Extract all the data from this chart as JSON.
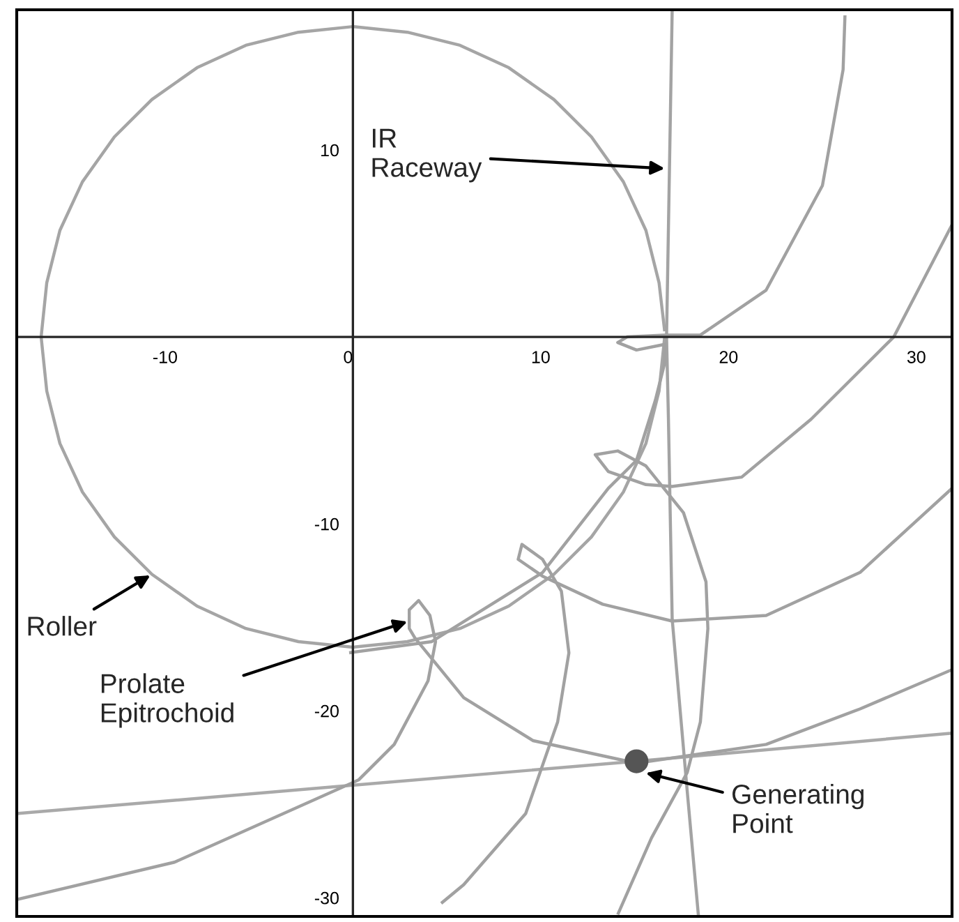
{
  "chart_data": {
    "type": "line",
    "xlim": [
      -17.9,
      31.9
    ],
    "ylim": [
      -31.0,
      17.5
    ],
    "xticks": [
      -10,
      0,
      10,
      20,
      30
    ],
    "yticks": [
      -30,
      -20,
      -10,
      10
    ],
    "series": [
      {
        "type": "line",
        "color": "#a5a5a5",
        "x": [
          16.6,
          16.3,
          15.6,
          14.4,
          12.7,
          10.7,
          8.3,
          5.7,
          2.9,
          0,
          -2.9,
          -5.7,
          -8.3,
          -10.7,
          -12.7,
          -14.4,
          -15.6,
          -16.3,
          -16.6,
          -16.3,
          -15.6,
          -14.4,
          -12.7,
          -10.7,
          -8.3,
          -5.7,
          -2.9,
          0,
          2.9,
          5.7,
          8.3,
          10.7,
          12.7,
          14.4,
          15.6,
          16.3,
          16.6
        ],
        "values": [
          0.3,
          2.9,
          5.7,
          8.3,
          10.7,
          12.7,
          14.4,
          15.6,
          16.3,
          16.6,
          16.3,
          15.6,
          14.4,
          12.7,
          10.7,
          8.3,
          5.7,
          2.9,
          0,
          -2.9,
          -5.7,
          -8.3,
          -10.7,
          -12.7,
          -14.4,
          -15.6,
          -16.3,
          -16.6,
          -16.3,
          -15.6,
          -14.4,
          -12.7,
          -10.7,
          -8.3,
          -5.7,
          -2.9,
          0
        ]
      },
      {
        "color": "#a3a3a3",
        "x": [
          17.0,
          16.7,
          16.8,
          17.0,
          17.8,
          18.4
        ],
        "values": [
          17.5,
          0,
          -4.4,
          -15.1,
          -24.3,
          -31.0
        ]
      },
      {
        "color": "#a9a9a9",
        "x": [
          -17.9,
          15.1,
          31.9
        ],
        "values": [
          -25.5,
          -22.7,
          -21.2
        ]
      },
      {
        "color": "#a1a1a1",
        "x": [
          -17.9,
          -9.5,
          0.3,
          2.2,
          4.0,
          4.4,
          4.1,
          3.5,
          3.0,
          3.0,
          3.3,
          5.9,
          9.6,
          15.1,
          22.0,
          27.0,
          31.9,
          null,
          4.7,
          5.9,
          9.2,
          10.9,
          11.5,
          11.1,
          10.1,
          9.0,
          8.8,
          10.1,
          13.3,
          17.0,
          22.0,
          27.0,
          31.9,
          null,
          14.1,
          15.9,
          17.8,
          18.5,
          18.9,
          18.8,
          17.6,
          15.6,
          14.1,
          12.9,
          13.6,
          15.6,
          17.0,
          20.7,
          24.4,
          28.8,
          31.9,
          null,
          -0.2,
          4.2,
          10.1,
          13.6,
          15.1,
          16.1,
          16.6,
          16.6,
          15.1,
          14.1,
          14.6,
          16.6,
          18.5,
          22.0,
          25.0,
          26.1,
          26.2
        ],
        "values": [
          -30.1,
          -28.1,
          -23.7,
          -21.8,
          -18.4,
          -16.3,
          -14.9,
          -14.1,
          -14.6,
          -15.6,
          -16.1,
          -19.3,
          -21.6,
          -22.8,
          -21.8,
          -19.9,
          -17.8,
          null,
          -30.3,
          -29.3,
          -25.5,
          -20.6,
          -16.9,
          -13.6,
          -11.9,
          -11.1,
          -11.9,
          -12.8,
          -14.3,
          -15.2,
          -14.9,
          -12.6,
          -8.1,
          null,
          -30.9,
          -26.8,
          -23.3,
          -20.6,
          -15.6,
          -13.1,
          -9.4,
          -6.9,
          -6.1,
          -6.3,
          -7.2,
          -7.9,
          -8.0,
          -7.5,
          -4.4,
          0,
          6.0,
          null,
          -16.9,
          -16.3,
          -12.6,
          -8.1,
          -6.6,
          -3.4,
          -1.4,
          -0.4,
          -0.7,
          -0.3,
          0.0,
          0.1,
          0.1,
          2.5,
          8.1,
          14.3,
          17.2
        ]
      },
      {
        "type": "scatter",
        "color": "#555555",
        "marker": "circle",
        "x": [
          15.1
        ],
        "values": [
          -22.7
        ]
      }
    ],
    "annotations": [
      {
        "text": "IR\nRaceway",
        "x": 16.7,
        "y": 9.0
      },
      {
        "text": "Roller",
        "x": -10.7,
        "y": -12.7
      },
      {
        "text": "Prolate\nEpitrochoid",
        "x": 3.0,
        "y": -15.2
      },
      {
        "text": "Generating\nPoint",
        "x": 15.5,
        "y": -23.3
      }
    ]
  }
}
